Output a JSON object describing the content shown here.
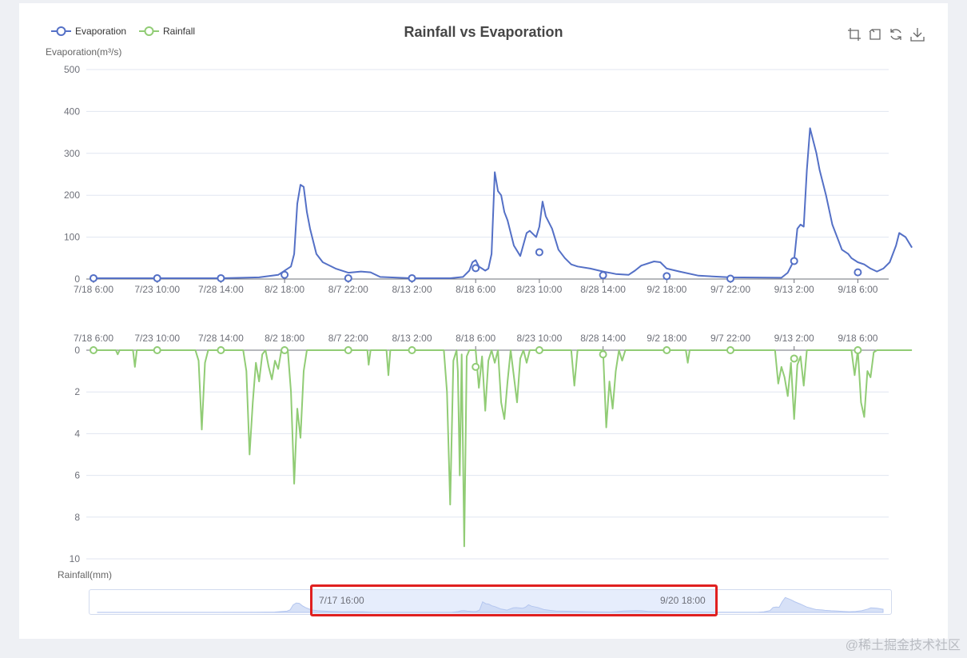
{
  "page": {
    "background": "#eef0f4",
    "watermark": "@稀土掘金技术社区"
  },
  "chart_data": {
    "type": "line",
    "title": "Rainfall vs Evaporation",
    "legend": {
      "position": "top-left",
      "items": [
        {
          "name": "Evaporation",
          "color": "#5470c6"
        },
        {
          "name": "Rainfall",
          "color": "#91cc75"
        }
      ]
    },
    "x_ticks": [
      "7/18 6:00",
      "7/23 10:00",
      "7/28 14:00",
      "8/2 18:00",
      "8/7 22:00",
      "8/13 2:00",
      "8/18 6:00",
      "8/23 10:00",
      "8/28 14:00",
      "9/2 18:00",
      "9/7 22:00",
      "9/13 2:00",
      "9/18 6:00"
    ],
    "grids": [
      {
        "series_name": "Evaporation",
        "ylabel": "Evaporation(m³/s)",
        "ylim": [
          0,
          500
        ],
        "yticks": [
          0,
          100,
          200,
          300,
          400,
          500
        ],
        "inverse": false,
        "color": "#5470c6",
        "points": [
          [
            0,
            2
          ],
          [
            1,
            2
          ],
          [
            2,
            2
          ],
          [
            2.6,
            4
          ],
          [
            2.9,
            10
          ],
          [
            3.1,
            30
          ],
          [
            3.15,
            60
          ],
          [
            3.2,
            180
          ],
          [
            3.25,
            225
          ],
          [
            3.3,
            220
          ],
          [
            3.35,
            160
          ],
          [
            3.4,
            120
          ],
          [
            3.5,
            60
          ],
          [
            3.6,
            40
          ],
          [
            3.8,
            25
          ],
          [
            4.0,
            15
          ],
          [
            4.2,
            18
          ],
          [
            4.35,
            16
          ],
          [
            4.5,
            5
          ],
          [
            5,
            2
          ],
          [
            5.6,
            2
          ],
          [
            5.8,
            5
          ],
          [
            5.9,
            20
          ],
          [
            5.95,
            40
          ],
          [
            6.0,
            45
          ],
          [
            6.05,
            30
          ],
          [
            6.15,
            20
          ],
          [
            6.2,
            25
          ],
          [
            6.25,
            60
          ],
          [
            6.3,
            255
          ],
          [
            6.35,
            210
          ],
          [
            6.4,
            200
          ],
          [
            6.45,
            160
          ],
          [
            6.5,
            140
          ],
          [
            6.6,
            80
          ],
          [
            6.7,
            55
          ],
          [
            6.8,
            110
          ],
          [
            6.85,
            115
          ],
          [
            6.95,
            100
          ],
          [
            7.0,
            125
          ],
          [
            7.05,
            185
          ],
          [
            7.1,
            150
          ],
          [
            7.2,
            120
          ],
          [
            7.3,
            70
          ],
          [
            7.4,
            50
          ],
          [
            7.5,
            35
          ],
          [
            7.6,
            30
          ],
          [
            7.8,
            25
          ],
          [
            8.0,
            18
          ],
          [
            8.2,
            12
          ],
          [
            8.4,
            10
          ],
          [
            8.5,
            20
          ],
          [
            8.6,
            32
          ],
          [
            8.8,
            42
          ],
          [
            8.9,
            40
          ],
          [
            9.0,
            25
          ],
          [
            9.2,
            18
          ],
          [
            9.5,
            8
          ],
          [
            10,
            4
          ],
          [
            10.8,
            3
          ],
          [
            10.9,
            15
          ],
          [
            11.0,
            45
          ],
          [
            11.05,
            120
          ],
          [
            11.1,
            130
          ],
          [
            11.15,
            125
          ],
          [
            11.2,
            260
          ],
          [
            11.25,
            360
          ],
          [
            11.3,
            330
          ],
          [
            11.35,
            300
          ],
          [
            11.4,
            260
          ],
          [
            11.5,
            200
          ],
          [
            11.6,
            130
          ],
          [
            11.7,
            90
          ],
          [
            11.75,
            70
          ],
          [
            11.85,
            60
          ],
          [
            11.9,
            50
          ],
          [
            12.0,
            40
          ],
          [
            12.1,
            35
          ],
          [
            12.2,
            25
          ],
          [
            12.3,
            18
          ],
          [
            12.4,
            25
          ],
          [
            12.5,
            40
          ],
          [
            12.6,
            80
          ],
          [
            12.65,
            110
          ],
          [
            12.75,
            100
          ],
          [
            12.85,
            75
          ]
        ],
        "markers": [
          [
            0,
            2
          ],
          [
            1,
            2
          ],
          [
            2,
            2
          ],
          [
            3,
            10
          ],
          [
            4,
            2
          ],
          [
            5,
            2
          ],
          [
            6,
            26
          ],
          [
            7,
            64
          ],
          [
            8,
            9
          ],
          [
            9,
            7
          ],
          [
            10,
            1
          ],
          [
            11,
            43
          ],
          [
            12,
            16
          ]
        ]
      },
      {
        "series_name": "Rainfall",
        "ylabel": "Rainfall(mm)",
        "ylim": [
          0,
          10
        ],
        "yticks": [
          0,
          2,
          4,
          6,
          8,
          10
        ],
        "inverse": true,
        "color": "#91cc75",
        "points": [
          [
            0,
            0
          ],
          [
            0.35,
            0
          ],
          [
            0.38,
            0.2
          ],
          [
            0.41,
            0
          ],
          [
            0.62,
            0
          ],
          [
            0.65,
            0.8
          ],
          [
            0.68,
            0
          ],
          [
            1.6,
            0
          ],
          [
            1.65,
            0.5
          ],
          [
            1.7,
            3.8
          ],
          [
            1.75,
            0.6
          ],
          [
            1.8,
            0
          ],
          [
            2.35,
            0
          ],
          [
            2.4,
            1
          ],
          [
            2.45,
            5
          ],
          [
            2.5,
            2.5
          ],
          [
            2.55,
            0.6
          ],
          [
            2.6,
            1.5
          ],
          [
            2.65,
            0.2
          ],
          [
            2.7,
            0
          ],
          [
            2.7,
            0
          ],
          [
            2.75,
            0.8
          ],
          [
            2.8,
            1.4
          ],
          [
            2.85,
            0.5
          ],
          [
            2.9,
            0.9
          ],
          [
            2.95,
            0
          ],
          [
            3.05,
            0
          ],
          [
            3.1,
            2
          ],
          [
            3.15,
            6.4
          ],
          [
            3.2,
            2.8
          ],
          [
            3.25,
            4.2
          ],
          [
            3.3,
            1
          ],
          [
            3.35,
            0
          ],
          [
            4.3,
            0
          ],
          [
            4.32,
            0.7
          ],
          [
            4.35,
            0
          ],
          [
            4.6,
            0
          ],
          [
            4.63,
            1.2
          ],
          [
            4.66,
            0
          ],
          [
            5.5,
            0
          ],
          [
            5.55,
            2
          ],
          [
            5.6,
            7.4
          ],
          [
            5.65,
            0.5
          ],
          [
            5.7,
            0
          ],
          [
            5.72,
            1
          ],
          [
            5.75,
            6
          ],
          [
            5.78,
            0.2
          ],
          [
            5.82,
            9.4
          ],
          [
            5.86,
            0.3
          ],
          [
            5.9,
            0
          ],
          [
            6.0,
            0
          ],
          [
            6.05,
            1.8
          ],
          [
            6.1,
            0.3
          ],
          [
            6.15,
            2.9
          ],
          [
            6.2,
            0.5
          ],
          [
            6.25,
            0
          ],
          [
            6.3,
            0.6
          ],
          [
            6.35,
            0
          ],
          [
            6.4,
            2.5
          ],
          [
            6.45,
            3.3
          ],
          [
            6.5,
            1.5
          ],
          [
            6.55,
            0
          ],
          [
            6.65,
            2.5
          ],
          [
            6.7,
            0.4
          ],
          [
            6.75,
            0
          ],
          [
            6.8,
            0.6
          ],
          [
            6.85,
            0
          ],
          [
            7.5,
            0
          ],
          [
            7.55,
            1.7
          ],
          [
            7.6,
            0
          ],
          [
            8.0,
            0
          ],
          [
            8.05,
            3.7
          ],
          [
            8.1,
            1.5
          ],
          [
            8.15,
            2.8
          ],
          [
            8.2,
            1
          ],
          [
            8.25,
            0
          ],
          [
            8.3,
            0.5
          ],
          [
            8.35,
            0
          ],
          [
            9.3,
            0
          ],
          [
            9.33,
            0.6
          ],
          [
            9.36,
            0
          ],
          [
            10.7,
            0
          ],
          [
            10.75,
            1.6
          ],
          [
            10.8,
            0.8
          ],
          [
            10.85,
            1.3
          ],
          [
            10.9,
            2.2
          ],
          [
            10.95,
            0.6
          ],
          [
            11.0,
            3.3
          ],
          [
            11.05,
            0.7
          ],
          [
            11.1,
            0.3
          ],
          [
            11.15,
            1.7
          ],
          [
            11.2,
            0
          ],
          [
            11.9,
            0
          ],
          [
            11.95,
            1.2
          ],
          [
            12.0,
            0
          ],
          [
            12.05,
            2.5
          ],
          [
            12.1,
            3.2
          ],
          [
            12.15,
            1
          ],
          [
            12.2,
            1.3
          ],
          [
            12.25,
            0.1
          ],
          [
            12.3,
            0
          ],
          [
            12.85,
            0
          ]
        ],
        "markers": [
          [
            0,
            0
          ],
          [
            1,
            0
          ],
          [
            2,
            0
          ],
          [
            3,
            0
          ],
          [
            4,
            0
          ],
          [
            5,
            0
          ],
          [
            6,
            0.8
          ],
          [
            7,
            0
          ],
          [
            8,
            0.2
          ],
          [
            9,
            0
          ],
          [
            10,
            0
          ],
          [
            11,
            0.4
          ],
          [
            12,
            0
          ]
        ]
      }
    ],
    "data_zoom": {
      "start_label": "7/17 16:00",
      "end_label": "9/20 18:00"
    }
  }
}
